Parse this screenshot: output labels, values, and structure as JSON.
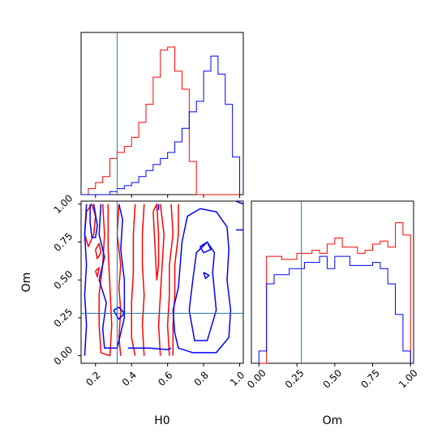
{
  "chart_data": {
    "type": "corner",
    "parameters": [
      "H0",
      "Om"
    ],
    "colors": {
      "red": "#ff0000",
      "blue": "#0000ff",
      "truth": "#1f77b4"
    },
    "truths": {
      "H0": 0.32,
      "Om": 0.28
    },
    "axes": {
      "H0": {
        "range": [
          0.12,
          1.02
        ],
        "ticks": [
          0.2,
          0.4,
          0.6,
          0.8,
          1.0
        ],
        "tick_labels": [
          "0.2",
          "0.4",
          "0.6",
          "0.8",
          "1.0"
        ]
      },
      "Om": {
        "range": [
          -0.05,
          1.02
        ],
        "ticks": [
          0.0,
          0.25,
          0.5,
          0.75,
          1.0
        ],
        "tick_labels": [
          "0.00",
          "0.25",
          "0.50",
          "0.75",
          "1.00"
        ]
      }
    },
    "xlabels": {
      "left": "H0",
      "right": "Om"
    },
    "ylabel": "Om",
    "hist_H0": {
      "bin_edges": [
        0.12,
        0.16,
        0.2,
        0.24,
        0.28,
        0.32,
        0.36,
        0.4,
        0.44,
        0.48,
        0.52,
        0.56,
        0.6,
        0.64,
        0.68,
        0.72,
        0.76,
        0.8,
        0.84,
        0.88,
        0.92,
        0.96,
        1.0
      ],
      "series": [
        {
          "color": "red",
          "values": [
            0,
            4,
            8,
            12,
            24,
            28,
            32,
            38,
            48,
            60,
            78,
            96,
            98,
            82,
            70,
            22,
            0,
            0,
            0,
            0,
            0,
            0
          ]
        },
        {
          "color": "blue",
          "values": [
            0,
            0,
            0,
            0,
            2,
            4,
            6,
            8,
            12,
            16,
            20,
            24,
            28,
            35,
            44,
            55,
            62,
            82,
            92,
            80,
            60,
            25
          ]
        }
      ]
    },
    "hist_Om": {
      "bin_edges": [
        0.0,
        0.05,
        0.1,
        0.15,
        0.2,
        0.25,
        0.3,
        0.35,
        0.4,
        0.45,
        0.5,
        0.55,
        0.6,
        0.65,
        0.7,
        0.75,
        0.8,
        0.85,
        0.9,
        0.95,
        1.0
      ],
      "series": [
        {
          "color": "red",
          "values": [
            0,
            70,
            70,
            68,
            68,
            72,
            72,
            74,
            72,
            78,
            82,
            76,
            76,
            72,
            74,
            78,
            80,
            76,
            92,
            84
          ]
        },
        {
          "color": "blue",
          "values": [
            8,
            52,
            58,
            58,
            62,
            62,
            66,
            66,
            70,
            62,
            70,
            70,
            64,
            64,
            64,
            66,
            62,
            52,
            32,
            8
          ]
        }
      ]
    },
    "contours": {
      "red": [
        [
          [
            0.15,
            0.95
          ],
          [
            0.18,
            1.0
          ],
          [
            0.2,
            0.92
          ],
          [
            0.19,
            0.8
          ],
          [
            0.16,
            0.72
          ],
          [
            0.14,
            0.8
          ],
          [
            0.15,
            0.95
          ]
        ],
        [
          [
            0.2,
            0.7
          ],
          [
            0.22,
            0.74
          ],
          [
            0.23,
            0.68
          ],
          [
            0.21,
            0.64
          ],
          [
            0.2,
            0.7
          ]
        ],
        [
          [
            0.2,
            0.56
          ],
          [
            0.22,
            0.58
          ],
          [
            0.21,
            0.52
          ],
          [
            0.2,
            0.56
          ]
        ],
        [
          [
            0.24,
            1.0
          ],
          [
            0.25,
            0.8
          ],
          [
            0.24,
            0.6
          ],
          [
            0.22,
            0.4
          ],
          [
            0.22,
            0.2
          ],
          [
            0.23,
            0.02
          ],
          [
            0.28,
            0.0
          ],
          [
            0.29,
            0.2
          ],
          [
            0.28,
            0.45
          ],
          [
            0.27,
            0.7
          ],
          [
            0.27,
            1.0
          ]
        ],
        [
          [
            0.33,
            1.0
          ],
          [
            0.32,
            0.8
          ],
          [
            0.34,
            0.6
          ],
          [
            0.33,
            0.45
          ],
          [
            0.34,
            0.3
          ],
          [
            0.33,
            0.12
          ],
          [
            0.34,
            0.0
          ]
        ],
        [
          [
            0.42,
            1.0
          ],
          [
            0.41,
            0.8
          ],
          [
            0.41,
            0.55
          ],
          [
            0.4,
            0.35
          ],
          [
            0.4,
            0.12
          ],
          [
            0.42,
            0.0
          ]
        ],
        [
          [
            0.47,
            1.0
          ],
          [
            0.46,
            0.8
          ],
          [
            0.46,
            0.6
          ],
          [
            0.47,
            0.4
          ],
          [
            0.46,
            0.2
          ],
          [
            0.47,
            0.0
          ]
        ],
        [
          [
            0.52,
            0.95
          ],
          [
            0.54,
            1.0
          ],
          [
            0.55,
            0.8
          ],
          [
            0.55,
            0.6
          ],
          [
            0.54,
            0.5
          ],
          [
            0.53,
            0.72
          ],
          [
            0.52,
            0.95
          ]
        ],
        [
          [
            0.56,
            1.0
          ],
          [
            0.58,
            0.8
          ],
          [
            0.57,
            0.6
          ],
          [
            0.56,
            0.4
          ],
          [
            0.55,
            0.2
          ],
          [
            0.56,
            0.0
          ]
        ],
        [
          [
            0.62,
            1.0
          ],
          [
            0.63,
            0.8
          ],
          [
            0.61,
            0.6
          ],
          [
            0.61,
            0.4
          ],
          [
            0.6,
            0.2
          ],
          [
            0.61,
            0.0
          ]
        ],
        [
          [
            0.66,
            1.0
          ],
          [
            0.66,
            0.8
          ],
          [
            0.64,
            0.6
          ],
          [
            0.64,
            0.4
          ],
          [
            0.63,
            0.2
          ],
          [
            0.63,
            0.0
          ]
        ]
      ],
      "blue": [
        [
          [
            0.15,
            1.0
          ],
          [
            0.14,
            0.8
          ],
          [
            0.15,
            0.6
          ],
          [
            0.14,
            0.4
          ],
          [
            0.15,
            0.2
          ],
          [
            0.14,
            0.0
          ]
        ],
        [
          [
            0.17,
            1.0
          ],
          [
            0.17,
            0.88
          ],
          [
            0.18,
            0.78
          ],
          [
            0.2,
            0.78
          ],
          [
            0.21,
            0.86
          ],
          [
            0.2,
            0.93
          ],
          [
            0.19,
            1.0
          ]
        ],
        [
          [
            0.23,
            1.0
          ],
          [
            0.22,
            0.8
          ],
          [
            0.25,
            0.65
          ],
          [
            0.22,
            0.5
          ],
          [
            0.26,
            0.35
          ],
          [
            0.24,
            0.18
          ],
          [
            0.25,
            0.05
          ],
          [
            0.32,
            0.05
          ],
          [
            0.36,
            0.25
          ],
          [
            0.36,
            0.5
          ],
          [
            0.34,
            0.7
          ],
          [
            0.35,
            0.9
          ],
          [
            0.33,
            1.0
          ]
        ],
        [
          [
            0.3,
            0.3
          ],
          [
            0.33,
            0.32
          ],
          [
            0.36,
            0.28
          ],
          [
            0.33,
            0.24
          ],
          [
            0.3,
            0.3
          ]
        ],
        [
          [
            0.38,
            0.05
          ],
          [
            0.5,
            0.05
          ],
          [
            0.6,
            0.04
          ],
          [
            0.62,
            0.05
          ]
        ],
        [
          [
            0.55,
            1.0
          ],
          [
            0.55,
            0.96
          ]
        ],
        [
          [
            0.68,
            0.75
          ],
          [
            0.67,
            0.6
          ],
          [
            0.66,
            0.45
          ],
          [
            0.63,
            0.3
          ],
          [
            0.64,
            0.15
          ],
          [
            0.66,
            0.05
          ],
          [
            0.74,
            0.02
          ],
          [
            0.87,
            0.02
          ],
          [
            0.94,
            0.12
          ],
          [
            0.95,
            0.3
          ],
          [
            0.93,
            0.5
          ],
          [
            0.94,
            0.7
          ],
          [
            0.93,
            0.85
          ],
          [
            0.87,
            0.95
          ],
          [
            0.78,
            0.97
          ],
          [
            0.71,
            0.92
          ],
          [
            0.68,
            0.75
          ]
        ],
        [
          [
            0.72,
            0.3
          ],
          [
            0.75,
            0.1
          ],
          [
            0.82,
            0.1
          ],
          [
            0.87,
            0.3
          ],
          [
            0.85,
            0.55
          ],
          [
            0.86,
            0.68
          ],
          [
            0.82,
            0.75
          ],
          [
            0.76,
            0.68
          ],
          [
            0.74,
            0.5
          ],
          [
            0.72,
            0.3
          ]
        ],
        [
          [
            0.78,
            0.72
          ],
          [
            0.82,
            0.75
          ],
          [
            0.84,
            0.7
          ],
          [
            0.8,
            0.68
          ],
          [
            0.78,
            0.72
          ]
        ],
        [
          [
            0.8,
            0.55
          ],
          [
            0.83,
            0.53
          ],
          [
            0.81,
            0.51
          ],
          [
            0.8,
            0.55
          ]
        ],
        [
          [
            0.98,
            1.02
          ],
          [
            1.02,
            1.0
          ]
        ],
        [
          [
            0.98,
            0.83
          ],
          [
            1.02,
            0.83
          ]
        ]
      ]
    }
  }
}
